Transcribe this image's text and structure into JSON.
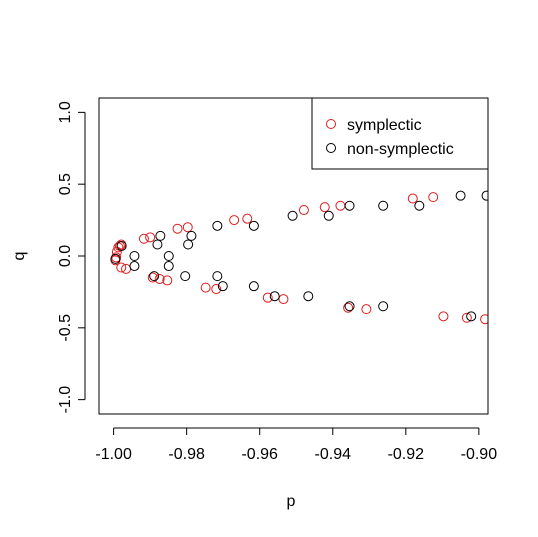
{
  "chart_data": {
    "type": "scatter",
    "title": "",
    "xlabel": "p",
    "ylabel": "q",
    "xlim": [
      -1.004,
      -0.8975
    ],
    "ylim": [
      -1.1,
      1.1
    ],
    "xticks": [
      -1.0,
      -0.98,
      -0.96,
      -0.94,
      -0.92,
      -0.9
    ],
    "xtick_labels": [
      "-1.00",
      "-0.98",
      "-0.96",
      "-0.94",
      "-0.92",
      "-0.90"
    ],
    "yticks": [
      -1.0,
      -0.5,
      0.0,
      0.5,
      1.0
    ],
    "ytick_labels": [
      "-1.0",
      "-0.5",
      "0.0",
      "0.5",
      "1.0"
    ],
    "grid": false,
    "legend_position": "top-right",
    "series": [
      {
        "name": "symplectic",
        "color": "#DF1C1C",
        "marker": "open-circle",
        "points": [
          [
            -0.9995,
            -0.03
          ],
          [
            -0.9993,
            -0.01
          ],
          [
            -0.9991,
            0.03
          ],
          [
            -0.9987,
            0.06
          ],
          [
            -0.9983,
            0.07
          ],
          [
            -0.9979,
            0.08
          ],
          [
            -0.9979,
            -0.08
          ],
          [
            -0.9966,
            -0.09
          ],
          [
            -0.9917,
            0.12
          ],
          [
            -0.99,
            0.13
          ],
          [
            -0.9893,
            -0.15
          ],
          [
            -0.9874,
            -0.16
          ],
          [
            -0.9853,
            -0.17
          ],
          [
            -0.9825,
            0.19
          ],
          [
            -0.9797,
            0.2
          ],
          [
            -0.9748,
            -0.22
          ],
          [
            -0.9719,
            -0.23
          ],
          [
            -0.967,
            0.25
          ],
          [
            -0.9634,
            0.26
          ],
          [
            -0.9578,
            -0.29
          ],
          [
            -0.9535,
            -0.3
          ],
          [
            -0.9479,
            0.32
          ],
          [
            -0.9422,
            0.34
          ],
          [
            -0.9379,
            0.35
          ],
          [
            -0.9358,
            -0.36
          ],
          [
            -0.9308,
            -0.37
          ],
          [
            -0.9181,
            0.4
          ],
          [
            -0.9125,
            0.41
          ],
          [
            -0.9097,
            -0.42
          ],
          [
            -0.9033,
            -0.43
          ],
          [
            -0.8983,
            -0.44
          ]
        ]
      },
      {
        "name": "non-symplectic",
        "color": "#000000",
        "marker": "open-circle",
        "points": [
          [
            -0.9995,
            -0.02
          ],
          [
            -0.9978,
            0.07
          ],
          [
            -0.9943,
            0.0
          ],
          [
            -0.9943,
            -0.07
          ],
          [
            -0.9889,
            -0.14
          ],
          [
            -0.988,
            0.08
          ],
          [
            -0.9872,
            0.14
          ],
          [
            -0.9849,
            0.0
          ],
          [
            -0.9849,
            -0.07
          ],
          [
            -0.9804,
            -0.14
          ],
          [
            -0.9796,
            0.08
          ],
          [
            -0.9787,
            0.14
          ],
          [
            -0.9716,
            0.21
          ],
          [
            -0.9716,
            -0.14
          ],
          [
            -0.9701,
            -0.21
          ],
          [
            -0.9616,
            0.21
          ],
          [
            -0.9616,
            -0.21
          ],
          [
            -0.9559,
            -0.28
          ],
          [
            -0.951,
            0.28
          ],
          [
            -0.9467,
            -0.28
          ],
          [
            -0.9411,
            0.28
          ],
          [
            -0.9354,
            0.35
          ],
          [
            -0.9354,
            -0.35
          ],
          [
            -0.9262,
            0.35
          ],
          [
            -0.9262,
            -0.35
          ],
          [
            -0.9163,
            0.35
          ],
          [
            -0.905,
            0.42
          ],
          [
            -0.9021,
            -0.42
          ],
          [
            -0.8979,
            0.42
          ]
        ]
      }
    ]
  }
}
